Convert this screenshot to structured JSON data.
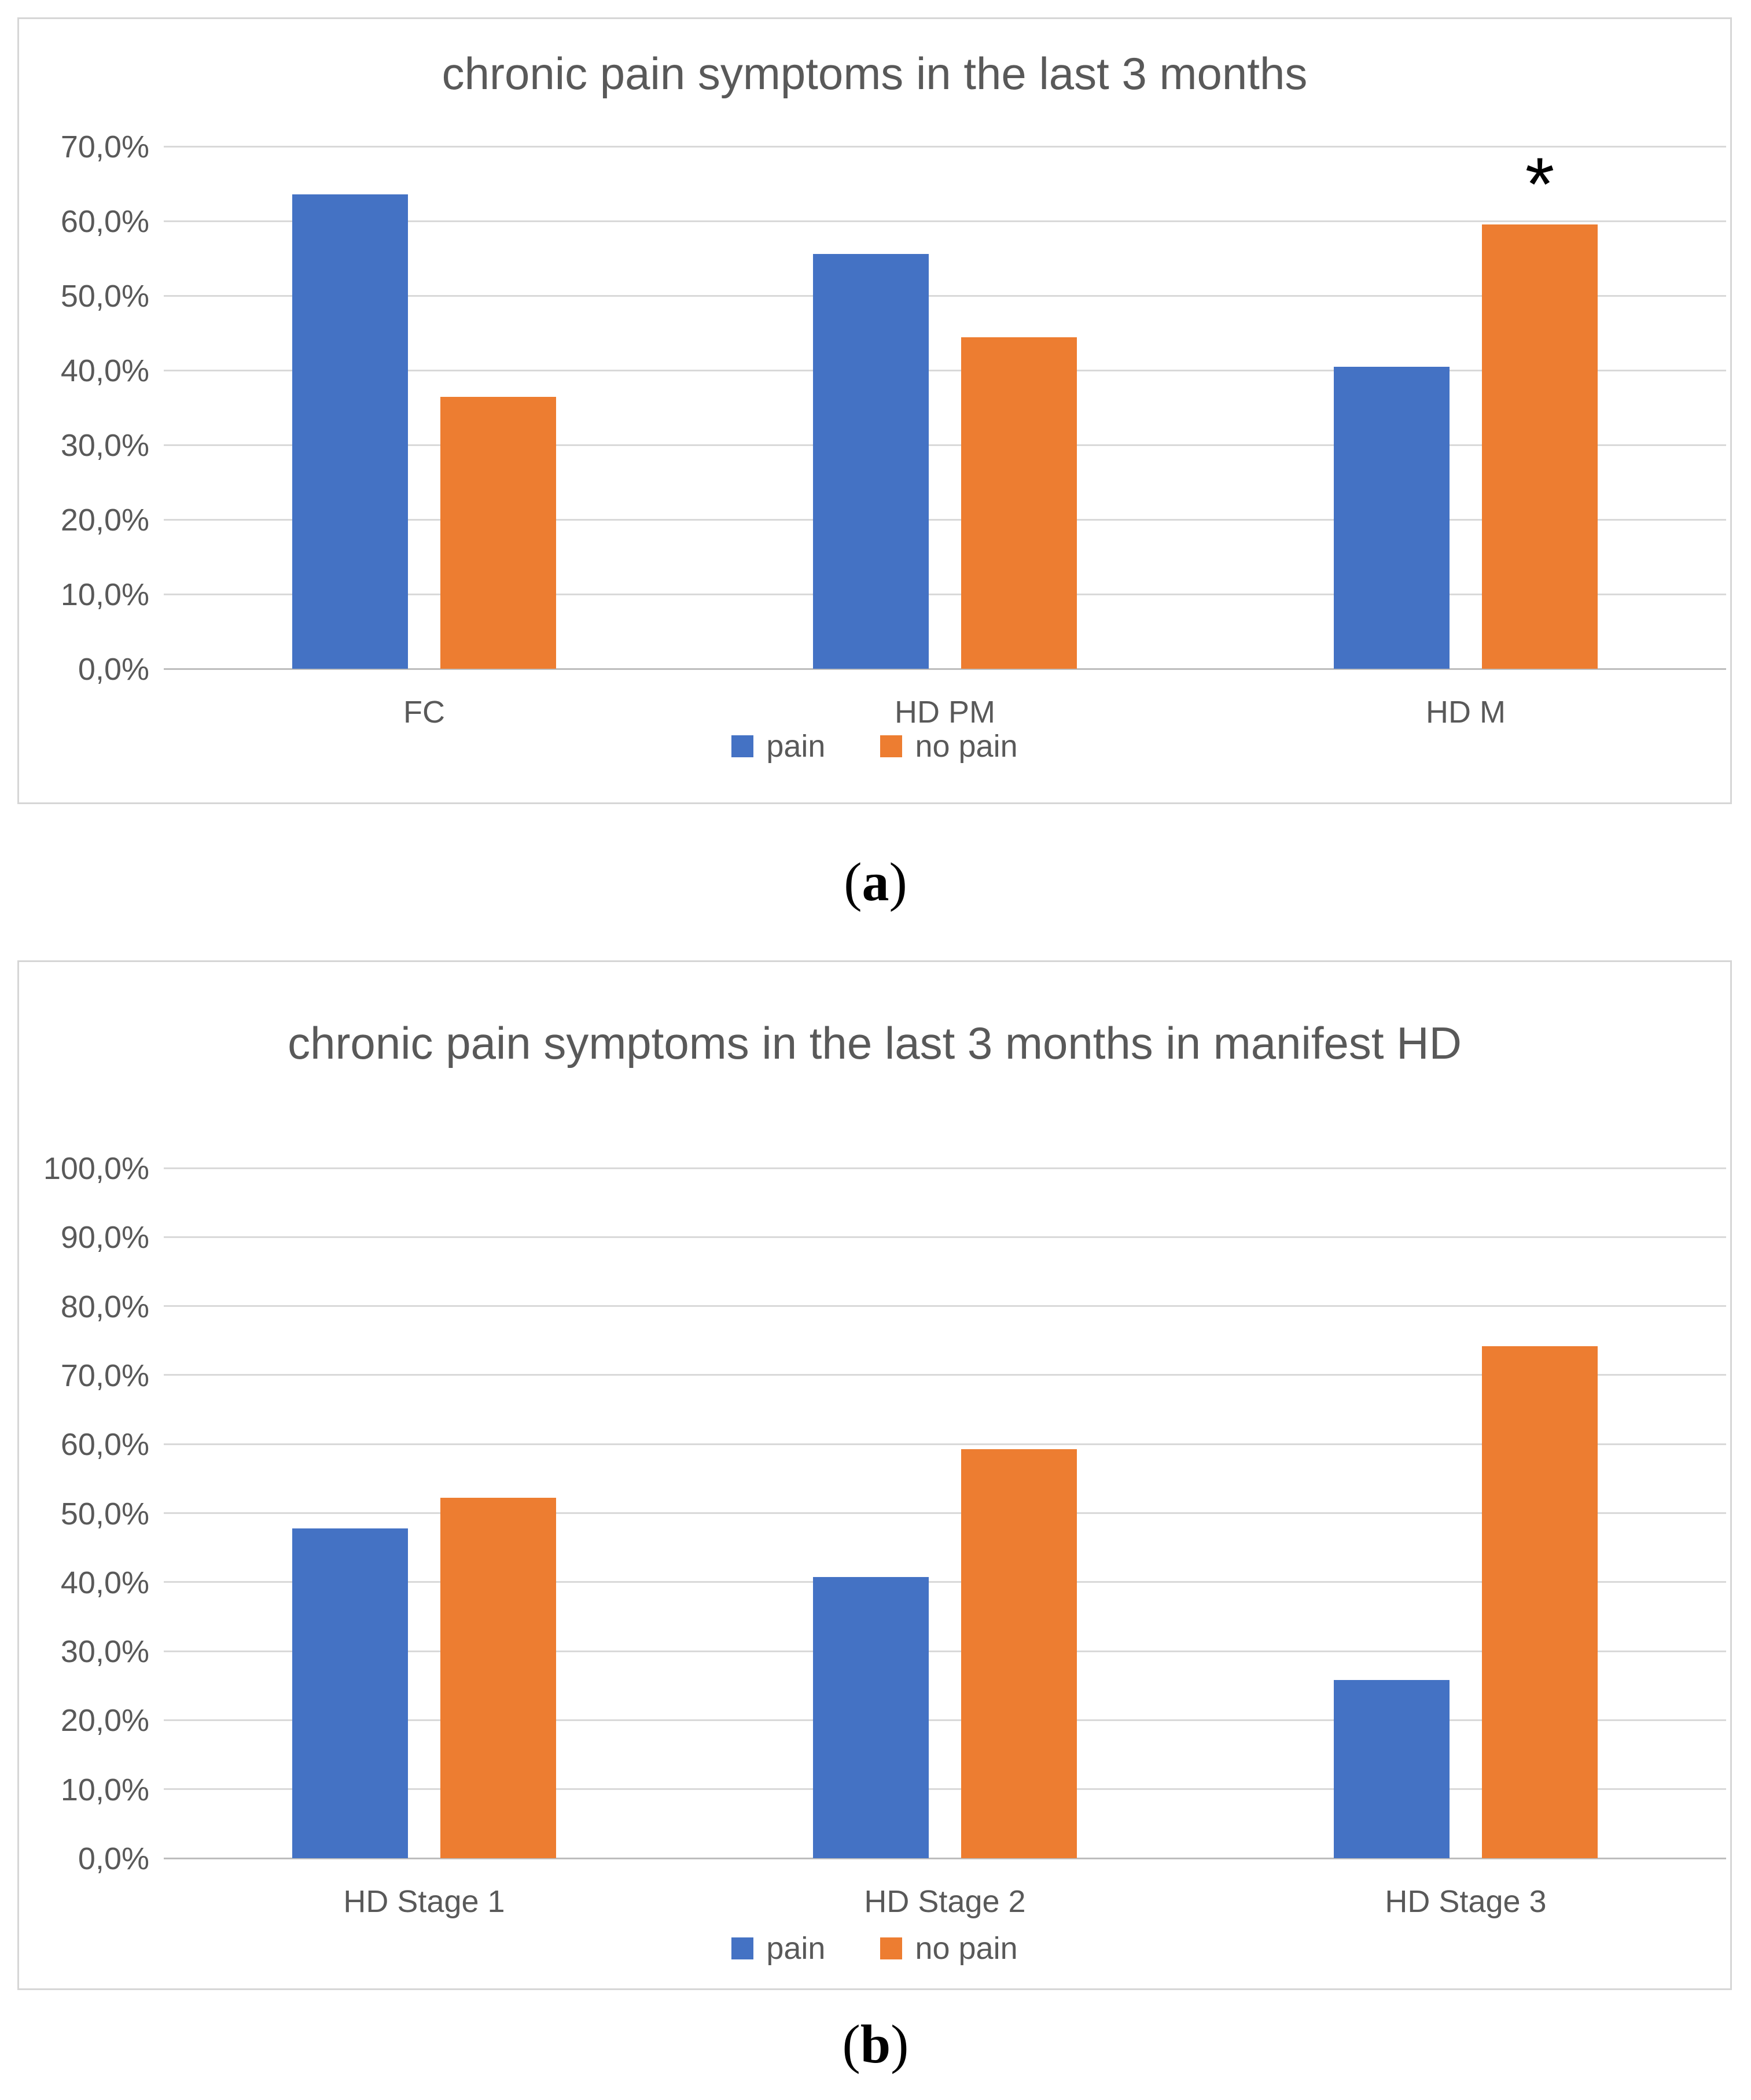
{
  "colors": {
    "pain": "#4472C4",
    "no_pain": "#ED7D31",
    "title_text": "#595959",
    "axis_text": "#595959",
    "gridline": "#D9D9D9",
    "annotation": "#000000"
  },
  "chart_data": [
    {
      "type": "bar",
      "title": "chronic pain symptoms in the last 3 months",
      "categories": [
        "FC",
        "HD PM",
        "HD M"
      ],
      "series": [
        {
          "name": "pain",
          "color": "#4472C4",
          "values": [
            63.6,
            55.6,
            40.5
          ]
        },
        {
          "name": "no pain",
          "color": "#ED7D31",
          "values": [
            36.4,
            44.4,
            59.5
          ]
        }
      ],
      "ylim": [
        0,
        70
      ],
      "ytick_step": 10,
      "ytick_labels": [
        "0,0%",
        "10,0%",
        "20,0%",
        "30,0%",
        "40,0%",
        "50,0%",
        "60,0%",
        "70,0%"
      ],
      "grid": true,
      "legend_position": "bottom",
      "annotations": [
        {
          "text": "*",
          "category_index": 2,
          "series_index": 1
        }
      ]
    },
    {
      "type": "bar",
      "title": "chronic pain symptoms in the last 3 months in manifest HD",
      "categories": [
        "HD Stage 1",
        "HD Stage 2",
        "HD Stage 3"
      ],
      "series": [
        {
          "name": "pain",
          "color": "#4472C4",
          "values": [
            47.8,
            40.7,
            25.8
          ]
        },
        {
          "name": "no pain",
          "color": "#ED7D31",
          "values": [
            52.2,
            59.3,
            74.2
          ]
        }
      ],
      "ylim": [
        0,
        100
      ],
      "ytick_step": 10,
      "ytick_labels": [
        "0,0%",
        "10,0%",
        "20,0%",
        "30,0%",
        "40,0%",
        "50,0%",
        "60,0%",
        "70,0%",
        "80,0%",
        "90,0%",
        "100,0%"
      ],
      "grid": true,
      "legend_position": "bottom",
      "annotations": []
    }
  ],
  "captions": {
    "a": {
      "open": "(",
      "letter": "a",
      "close": ")"
    },
    "b": {
      "open": "(",
      "letter": "b",
      "close": ")"
    }
  }
}
